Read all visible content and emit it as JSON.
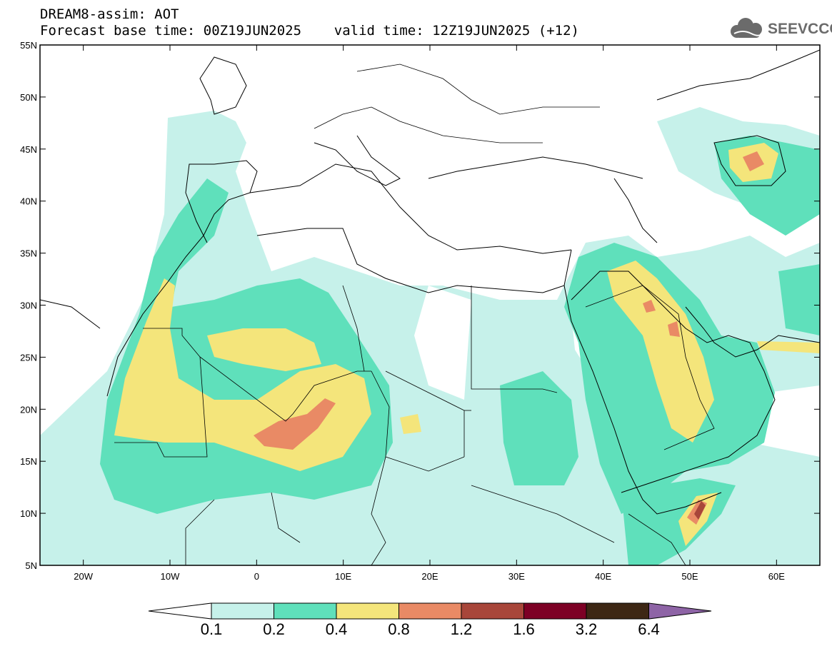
{
  "header": {
    "title_line1": "DREAM8-assim: AOT",
    "title_line2": "Forecast base time: 00Z19JUN2025    valid time: 12Z19JUN2025 (+12)"
  },
  "logo": {
    "text": "SEEVCCC",
    "icon": "cloud-icon"
  },
  "map": {
    "projection": "lat-lon",
    "lon_range": [
      -25,
      65
    ],
    "lat_range": [
      5,
      55
    ],
    "lat_ticks": [
      "5N",
      "10N",
      "15N",
      "20N",
      "25N",
      "30N",
      "35N",
      "40N",
      "45N",
      "50N",
      "55N"
    ],
    "lat_tick_values": [
      5,
      10,
      15,
      20,
      25,
      30,
      35,
      40,
      45,
      50,
      55
    ],
    "lon_ticks": [
      "20W",
      "10W",
      "0",
      "10E",
      "20E",
      "30E",
      "40E",
      "50E",
      "60E"
    ],
    "lon_tick_values": [
      -20,
      -10,
      0,
      10,
      20,
      30,
      40,
      50,
      60
    ],
    "dust_regions": [
      {
        "level": "0.1-0.2",
        "color": "#c6f1ea",
        "area": "broad North Africa & Middle East background"
      },
      {
        "level": "0.2-0.4",
        "color": "#5fe0bb",
        "area": "Sahara, Arabian Peninsula, Iberia west coast"
      },
      {
        "level": "0.4-0.8",
        "color": "#f4e57b",
        "area": "W Sahara, Algeria-Niger, Iraq-Kuwait, Somalia"
      },
      {
        "level": "0.8-1.2",
        "color": "#e98a65",
        "area": "Niger-Algeria border, Iraq, Caspian"
      },
      {
        "level": "1.2-1.6",
        "color": "#a8463a",
        "area": "Somalia coast"
      }
    ]
  },
  "colorbar": {
    "labels": [
      "0.1",
      "0.2",
      "0.4",
      "0.8",
      "1.2",
      "1.6",
      "3.2",
      "6.4"
    ],
    "colors": [
      "#ffffff",
      "#c6f1ea",
      "#5fe0bb",
      "#f4e57b",
      "#e98a65",
      "#a8463a",
      "#7d0025",
      "#3d2714",
      "#8e64a6"
    ]
  }
}
